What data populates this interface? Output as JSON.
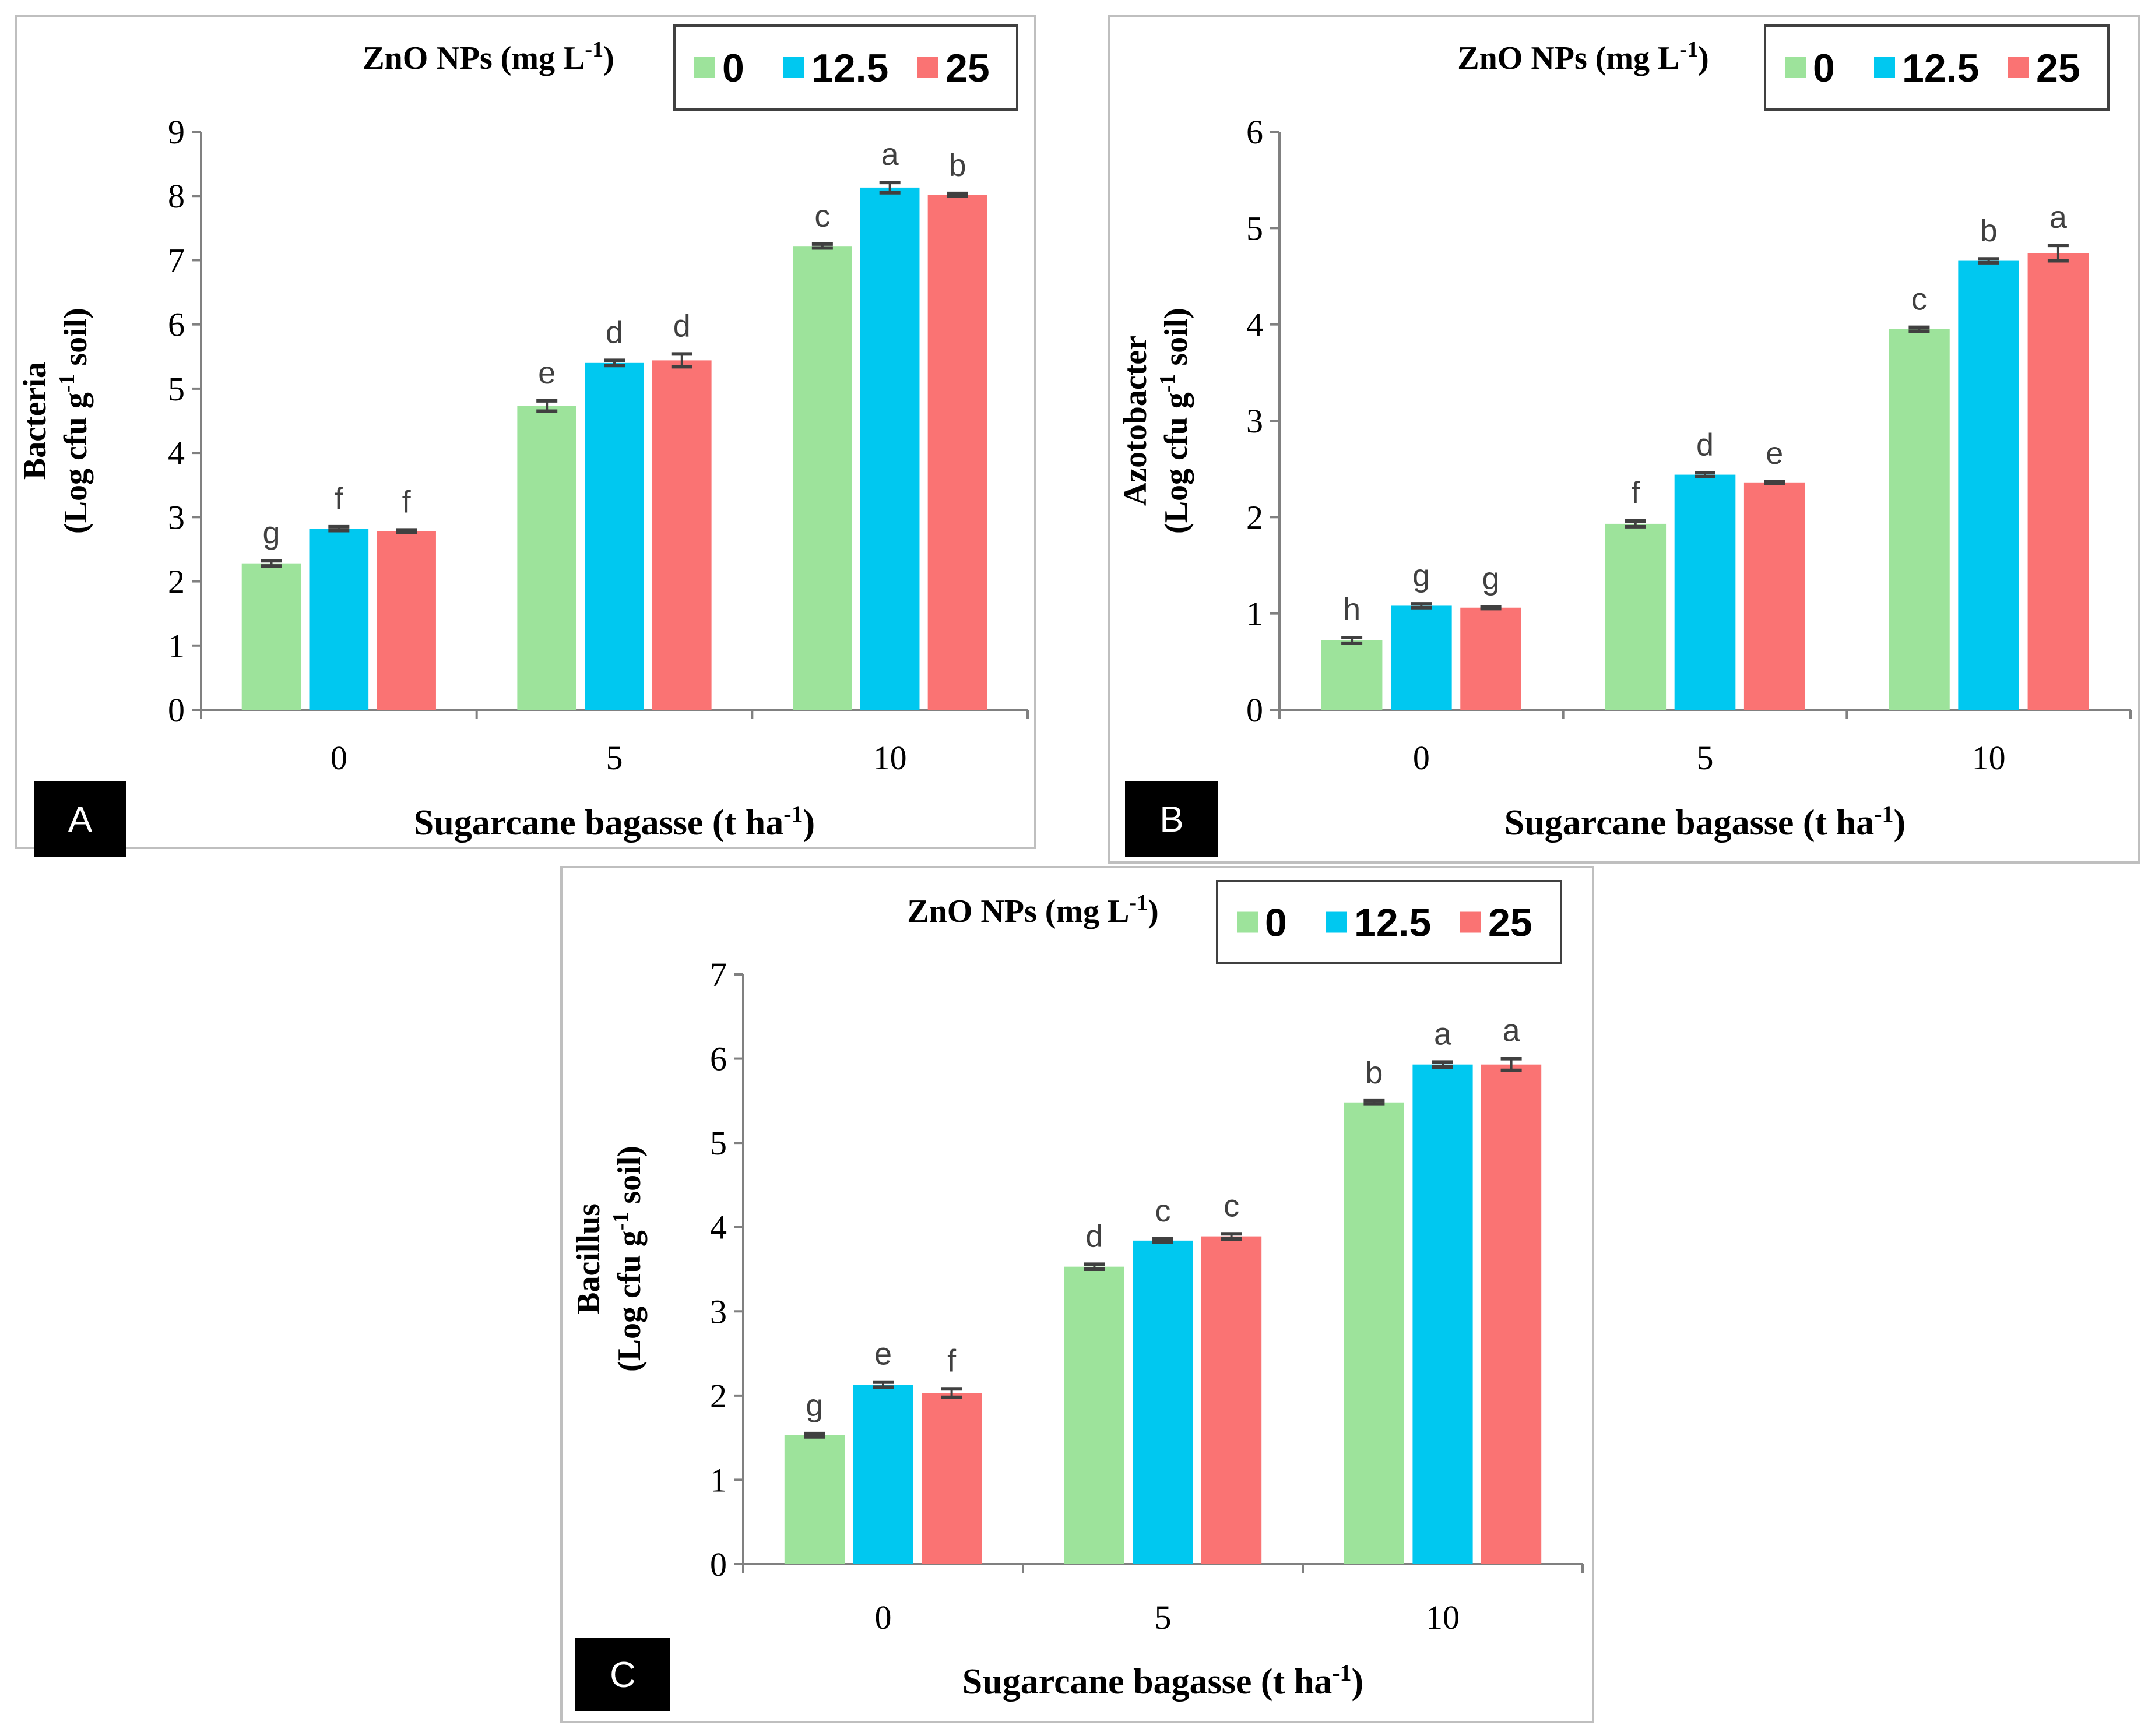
{
  "figure": {
    "legend_title": "ZnO NPs (mg L",
    "legend_title_sup": "-1",
    "legend_title_close": ")",
    "x_axis_title": "Sugarcane bagasse (t ha",
    "x_axis_title_sup": "-1",
    "x_axis_title_close": ")",
    "y_axis_unit_prefix": "(Log cfu g",
    "y_axis_unit_sup": "-1",
    "y_axis_unit_suffix": " soil)"
  },
  "colors": {
    "series_0": "#9de39b",
    "series_12_5": "#00c8f0",
    "series_25": "#fa7373",
    "error_bar": "#404040",
    "frame": "#bfbfbf",
    "panel_label_bg": "#000000"
  },
  "chart_data": [
    {
      "type": "bar",
      "panel_label": "A",
      "ylabel": "Bacteria",
      "xlabel": "Sugarcane bagasse (t ha-1)",
      "categories": [
        "0",
        "5",
        "10"
      ],
      "ylim": [
        0,
        9
      ],
      "yticks": [
        0,
        1,
        2,
        3,
        4,
        5,
        6,
        7,
        8,
        9
      ],
      "legend_position": "top-right",
      "legend_title": "ZnO NPs (mg L-1)",
      "series": [
        {
          "name": "0",
          "values": [
            2.28,
            4.73,
            7.22
          ],
          "errors": [
            0.04,
            0.08,
            0.03
          ],
          "letters": [
            "g",
            "e",
            "c"
          ]
        },
        {
          "name": "12.5",
          "values": [
            2.82,
            5.4,
            8.13
          ],
          "errors": [
            0.03,
            0.04,
            0.08
          ],
          "letters": [
            "f",
            "d",
            "a"
          ]
        },
        {
          "name": "25",
          "values": [
            2.78,
            5.44,
            8.02
          ],
          "errors": [
            0.02,
            0.1,
            0.02
          ],
          "letters": [
            "f",
            "d",
            "b"
          ]
        }
      ]
    },
    {
      "type": "bar",
      "panel_label": "B",
      "ylabel": "Azotobacter",
      "xlabel": "Sugarcane bagasse (t ha-1)",
      "categories": [
        "0",
        "5",
        "10"
      ],
      "ylim": [
        0,
        6
      ],
      "yticks": [
        0,
        1,
        2,
        3,
        4,
        5,
        6
      ],
      "legend_position": "top-right",
      "legend_title": "ZnO NPs (mg L-1)",
      "series": [
        {
          "name": "0",
          "values": [
            0.72,
            1.93,
            3.95
          ],
          "errors": [
            0.03,
            0.03,
            0.02
          ],
          "letters": [
            "h",
            "f",
            "c"
          ]
        },
        {
          "name": "12.5",
          "values": [
            1.08,
            2.44,
            4.66
          ],
          "errors": [
            0.02,
            0.02,
            0.02
          ],
          "letters": [
            "g",
            "d",
            "b"
          ]
        },
        {
          "name": "25",
          "values": [
            1.06,
            2.36,
            4.74
          ],
          "errors": [
            0.01,
            0.01,
            0.08
          ],
          "letters": [
            "g",
            "e",
            "a"
          ]
        }
      ]
    },
    {
      "type": "bar",
      "panel_label": "C",
      "ylabel": "Bacillus",
      "xlabel": "Sugarcane bagasse (t ha-1)",
      "categories": [
        "0",
        "5",
        "10"
      ],
      "ylim": [
        0,
        7
      ],
      "yticks": [
        0,
        1,
        2,
        3,
        4,
        5,
        6,
        7
      ],
      "legend_position": "top-right",
      "legend_title": "ZnO NPs (mg L-1)",
      "series": [
        {
          "name": "0",
          "values": [
            1.53,
            3.53,
            5.48
          ],
          "errors": [
            0.02,
            0.03,
            0.02
          ],
          "letters": [
            "g",
            "d",
            "b"
          ]
        },
        {
          "name": "12.5",
          "values": [
            2.13,
            3.84,
            5.93
          ],
          "errors": [
            0.03,
            0.02,
            0.03
          ],
          "letters": [
            "e",
            "c",
            "a"
          ]
        },
        {
          "name": "25",
          "values": [
            2.03,
            3.89,
            5.93
          ],
          "errors": [
            0.05,
            0.03,
            0.07
          ],
          "letters": [
            "f",
            "c",
            "a"
          ]
        }
      ]
    }
  ]
}
